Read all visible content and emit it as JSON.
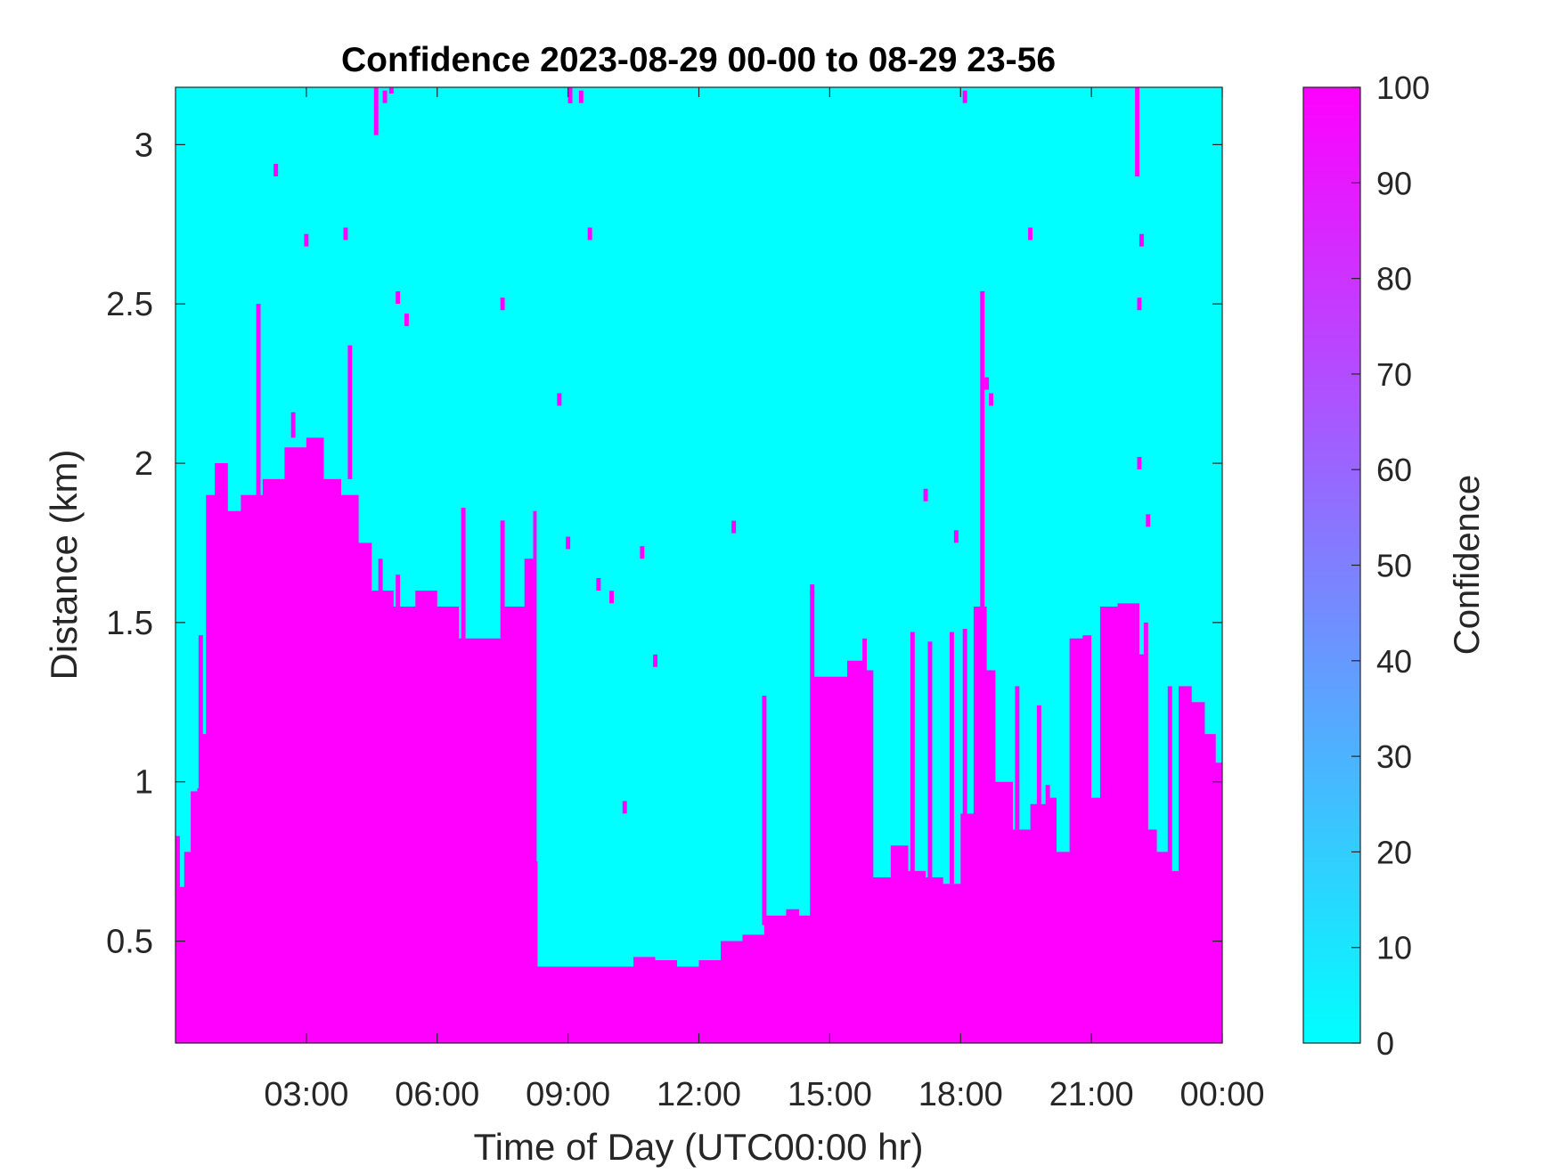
{
  "chart_data": {
    "type": "heatmap",
    "title": "Confidence 2023-08-29 00-00 to 08-29 23-56",
    "xlabel": "Time of Day (UTC00:00 hr)",
    "ylabel": "Distance (km)",
    "xlim_hours": [
      0,
      24
    ],
    "ylim_km": [
      0.18,
      3.18
    ],
    "x_tick_hours": [
      3,
      6,
      9,
      12,
      15,
      18,
      21,
      24
    ],
    "x_tick_labels": [
      "03:00",
      "06:00",
      "09:00",
      "12:00",
      "15:00",
      "18:00",
      "21:00",
      "00:00"
    ],
    "y_ticks": [
      0.5,
      1,
      1.5,
      2,
      2.5,
      3
    ],
    "y_tick_labels": [
      "0.5",
      "1",
      "1.5",
      "2",
      "2.5",
      "3"
    ],
    "colorbar": {
      "label": "Confidence",
      "range": [
        0,
        100
      ],
      "ticks": [
        0,
        10,
        20,
        30,
        40,
        50,
        60,
        70,
        80,
        90,
        100
      ],
      "tick_labels": [
        "0",
        "10",
        "20",
        "30",
        "40",
        "50",
        "60",
        "70",
        "80",
        "90",
        "100"
      ],
      "colormap": "cool",
      "low_color": "#00ffff",
      "high_color": "#ff00ff"
    },
    "background_value": 0,
    "foreground_value": 100,
    "grid": false,
    "high_confidence_top_km": [
      [
        0.0,
        0.83
      ],
      [
        0.1,
        0.67
      ],
      [
        0.2,
        0.78
      ],
      [
        0.35,
        0.97
      ],
      [
        0.5,
        0.98
      ],
      [
        0.6,
        1.15
      ],
      [
        0.7,
        1.9
      ],
      [
        0.9,
        2.0
      ],
      [
        1.2,
        1.85
      ],
      [
        1.5,
        1.9
      ],
      [
        2.0,
        1.95
      ],
      [
        2.5,
        2.05
      ],
      [
        3.0,
        2.08
      ],
      [
        3.4,
        1.95
      ],
      [
        3.8,
        1.9
      ],
      [
        4.2,
        1.75
      ],
      [
        4.5,
        1.6
      ],
      [
        5.0,
        1.55
      ],
      [
        5.5,
        1.6
      ],
      [
        6.0,
        1.55
      ],
      [
        6.5,
        1.45
      ],
      [
        7.0,
        1.45
      ],
      [
        7.5,
        1.55
      ],
      [
        8.0,
        1.7
      ],
      [
        8.2,
        1.85
      ],
      [
        8.28,
        0.75
      ],
      [
        8.3,
        0.42
      ],
      [
        9.0,
        0.42
      ],
      [
        10.0,
        0.42
      ],
      [
        10.5,
        0.45
      ],
      [
        11.0,
        0.44
      ],
      [
        11.5,
        0.42
      ],
      [
        12.0,
        0.44
      ],
      [
        12.5,
        0.5
      ],
      [
        13.0,
        0.52
      ],
      [
        13.5,
        0.58
      ],
      [
        14.0,
        0.6
      ],
      [
        14.3,
        0.58
      ],
      [
        14.6,
        1.33
      ],
      [
        15.0,
        1.33
      ],
      [
        15.4,
        1.38
      ],
      [
        15.8,
        1.35
      ],
      [
        16.0,
        0.7
      ],
      [
        16.4,
        0.8
      ],
      [
        16.8,
        0.72
      ],
      [
        17.2,
        0.7
      ],
      [
        17.6,
        0.68
      ],
      [
        18.0,
        0.9
      ],
      [
        18.3,
        1.55
      ],
      [
        18.6,
        1.35
      ],
      [
        18.8,
        1.0
      ],
      [
        19.2,
        0.85
      ],
      [
        19.6,
        0.93
      ],
      [
        20.0,
        0.95
      ],
      [
        20.2,
        0.78
      ],
      [
        20.5,
        1.45
      ],
      [
        20.8,
        1.46
      ],
      [
        21.0,
        0.95
      ],
      [
        21.2,
        1.55
      ],
      [
        21.6,
        1.56
      ],
      [
        22.0,
        1.4
      ],
      [
        22.2,
        0.85
      ],
      [
        22.5,
        0.78
      ],
      [
        22.8,
        0.72
      ],
      [
        23.0,
        1.3
      ],
      [
        23.3,
        1.25
      ],
      [
        23.6,
        1.15
      ],
      [
        23.85,
        1.06
      ],
      [
        24.0,
        1.06
      ]
    ],
    "high_confidence_spikes": [
      [
        0.58,
        0.98,
        1.46
      ],
      [
        1.9,
        1.9,
        2.5
      ],
      [
        2.7,
        2.08,
        2.16
      ],
      [
        4.0,
        1.95,
        2.37
      ],
      [
        4.7,
        1.55,
        1.7
      ],
      [
        5.1,
        1.55,
        1.65
      ],
      [
        6.6,
        1.4,
        1.86
      ],
      [
        7.5,
        1.45,
        1.82
      ],
      [
        13.5,
        0.55,
        1.27
      ],
      [
        14.6,
        0.5,
        1.6
      ],
      [
        15.8,
        1.3,
        1.45
      ],
      [
        16.9,
        0.7,
        1.47
      ],
      [
        17.3,
        0.7,
        1.44
      ],
      [
        17.8,
        0.68,
        1.47
      ],
      [
        18.1,
        0.75,
        1.48
      ],
      [
        18.5,
        0.9,
        2.54
      ],
      [
        19.3,
        0.85,
        1.3
      ],
      [
        19.8,
        0.9,
        1.24
      ],
      [
        20.0,
        0.78,
        0.99
      ],
      [
        22.05,
        0.95,
        1.56
      ],
      [
        22.25,
        0.8,
        1.5
      ],
      [
        22.8,
        0.65,
        1.3
      ]
    ],
    "high_confidence_specks": [
      [
        2.3,
        2.92
      ],
      [
        3.0,
        2.7
      ],
      [
        3.9,
        2.72
      ],
      [
        4.8,
        3.15
      ],
      [
        4.95,
        3.18
      ],
      [
        5.1,
        2.52
      ],
      [
        5.3,
        2.45
      ],
      [
        7.5,
        2.5
      ],
      [
        8.8,
        2.2
      ],
      [
        9.0,
        1.75
      ],
      [
        9.3,
        3.15
      ],
      [
        9.5,
        2.72
      ],
      [
        9.7,
        1.62
      ],
      [
        10.0,
        1.58
      ],
      [
        10.3,
        0.92
      ],
      [
        10.7,
        1.72
      ],
      [
        11.0,
        1.38
      ],
      [
        12.8,
        1.8
      ],
      [
        14.6,
        1.6
      ],
      [
        17.2,
        1.9
      ],
      [
        17.9,
        1.77
      ],
      [
        18.1,
        3.15
      ],
      [
        18.6,
        2.25
      ],
      [
        18.7,
        2.2
      ],
      [
        19.6,
        2.72
      ],
      [
        22.1,
        2.0
      ],
      [
        22.1,
        2.5
      ],
      [
        22.15,
        2.7
      ],
      [
        22.3,
        1.82
      ]
    ],
    "high_confidence_streaks": [
      [
        4.6,
        3.18,
        3.03
      ],
      [
        22.05,
        3.18,
        2.9
      ],
      [
        9.05,
        3.18,
        3.13
      ]
    ]
  }
}
